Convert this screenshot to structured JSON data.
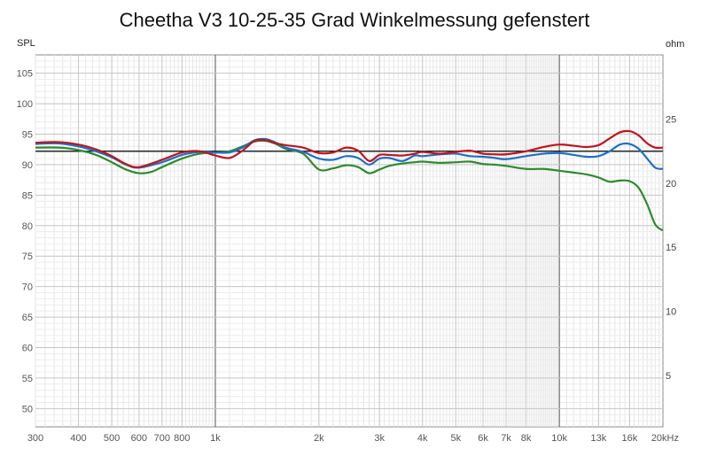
{
  "chart_data": {
    "type": "line",
    "title": "Cheetha V3 10-25-35 Grad Winkelmessung gefenstert",
    "ylabel": "SPL",
    "y2label": "ohm",
    "xscale": "log",
    "xlim": [
      300,
      20000
    ],
    "ylim": [
      47,
      108
    ],
    "y2lim": [
      1,
      30
    ],
    "grid": true,
    "x_ticks": [
      {
        "value": 300,
        "label": "300"
      },
      {
        "value": 400,
        "label": "400"
      },
      {
        "value": 500,
        "label": "500"
      },
      {
        "value": 600,
        "label": "600"
      },
      {
        "value": 700,
        "label": "700"
      },
      {
        "value": 800,
        "label": "800"
      },
      {
        "value": 1000,
        "label": "1k"
      },
      {
        "value": 2000,
        "label": "2k"
      },
      {
        "value": 3000,
        "label": "3k"
      },
      {
        "value": 4000,
        "label": "4k"
      },
      {
        "value": 5000,
        "label": "5k"
      },
      {
        "value": 6000,
        "label": "6k"
      },
      {
        "value": 7000,
        "label": "7k"
      },
      {
        "value": 8000,
        "label": "8k"
      },
      {
        "value": 10000,
        "label": "10k"
      },
      {
        "value": 13000,
        "label": "13k"
      },
      {
        "value": 16000,
        "label": "16k"
      },
      {
        "value": 20000,
        "label": "20kHz"
      }
    ],
    "y_ticks": [
      {
        "value": 105,
        "label": "105"
      },
      {
        "value": 100,
        "label": "100"
      },
      {
        "value": 95,
        "label": "95"
      },
      {
        "value": 90,
        "label": "90"
      },
      {
        "value": 85,
        "label": "85"
      },
      {
        "value": 80,
        "label": "80"
      },
      {
        "value": 75,
        "label": "75"
      },
      {
        "value": 70,
        "label": "70"
      },
      {
        "value": 65,
        "label": "65"
      },
      {
        "value": 60,
        "label": "60"
      },
      {
        "value": 55,
        "label": "55"
      },
      {
        "value": 50,
        "label": "50"
      }
    ],
    "y2_ticks": [
      {
        "value": 25,
        "label": "25"
      },
      {
        "value": 20,
        "label": "20"
      },
      {
        "value": 15,
        "label": "15"
      },
      {
        "value": 10,
        "label": "10"
      },
      {
        "value": 5,
        "label": "5"
      }
    ],
    "reference_line": {
      "y": 92.2,
      "color": "#000000"
    },
    "series": [
      {
        "color": "#c0141c",
        "x": [
          300,
          350,
          400,
          450,
          500,
          550,
          600,
          700,
          800,
          900,
          1000,
          1100,
          1200,
          1300,
          1400,
          1500,
          1600,
          1800,
          2000,
          2200,
          2400,
          2600,
          2800,
          3000,
          3200,
          3500,
          3800,
          4000,
          4500,
          5000,
          5500,
          6000,
          6500,
          7000,
          8000,
          9000,
          10000,
          11000,
          12000,
          13000,
          14000,
          15000,
          16000,
          17000,
          18000,
          19000,
          20000
        ],
        "y": [
          93.6,
          93.7,
          93.3,
          92.5,
          91.4,
          90.1,
          89.6,
          90.8,
          92.0,
          92.2,
          91.5,
          91.1,
          92.3,
          93.9,
          94.0,
          93.5,
          93.2,
          92.8,
          91.9,
          92.0,
          92.8,
          92.3,
          90.6,
          91.6,
          91.6,
          91.5,
          91.8,
          92.1,
          91.8,
          92.1,
          92.3,
          91.8,
          91.7,
          91.7,
          92.2,
          92.9,
          93.3,
          93.1,
          92.9,
          93.2,
          94.3,
          95.3,
          95.5,
          94.8,
          93.5,
          92.8,
          92.8
        ]
      },
      {
        "color": "#1e6fc8",
        "x": [
          300,
          350,
          400,
          450,
          500,
          550,
          600,
          700,
          800,
          900,
          1000,
          1100,
          1200,
          1300,
          1400,
          1500,
          1600,
          1800,
          2000,
          2200,
          2400,
          2600,
          2800,
          3000,
          3200,
          3500,
          3800,
          4000,
          4500,
          5000,
          5500,
          6000,
          6500,
          7000,
          8000,
          9000,
          10000,
          11000,
          12000,
          13000,
          14000,
          15000,
          16000,
          17000,
          18000,
          19000,
          20000
        ],
        "y": [
          93.4,
          93.5,
          93.0,
          92.2,
          91.2,
          90.0,
          89.5,
          90.4,
          91.6,
          92.1,
          92.0,
          92.0,
          92.8,
          94.0,
          94.2,
          93.6,
          92.8,
          92.1,
          91.0,
          90.8,
          91.4,
          91.1,
          90.0,
          91.0,
          91.1,
          90.6,
          91.5,
          91.4,
          91.7,
          91.8,
          91.4,
          91.3,
          91.1,
          90.9,
          91.4,
          91.8,
          91.9,
          91.6,
          91.3,
          91.4,
          92.2,
          93.3,
          93.4,
          92.6,
          91.0,
          89.5,
          89.3
        ]
      },
      {
        "color": "#2d8a2e",
        "x": [
          300,
          350,
          400,
          450,
          500,
          550,
          600,
          650,
          700,
          800,
          900,
          1000,
          1100,
          1200,
          1300,
          1400,
          1500,
          1600,
          1800,
          2000,
          2200,
          2400,
          2600,
          2800,
          3000,
          3200,
          3500,
          3800,
          4000,
          4500,
          5000,
          5500,
          6000,
          6500,
          7000,
          8000,
          9000,
          10000,
          11000,
          12000,
          13000,
          14000,
          15000,
          16000,
          17000,
          18000,
          19000,
          20000
        ],
        "y": [
          92.8,
          92.8,
          92.4,
          91.6,
          90.4,
          89.2,
          88.6,
          88.8,
          89.6,
          91.0,
          91.8,
          92.0,
          92.2,
          93.0,
          93.8,
          93.9,
          93.4,
          92.6,
          91.8,
          89.2,
          89.4,
          89.9,
          89.6,
          88.6,
          89.2,
          89.8,
          90.2,
          90.4,
          90.5,
          90.3,
          90.4,
          90.5,
          90.1,
          90.0,
          89.8,
          89.3,
          89.3,
          89.0,
          88.7,
          88.4,
          87.9,
          87.2,
          87.4,
          87.3,
          86.2,
          83.5,
          80.2,
          79.2
        ]
      }
    ]
  }
}
